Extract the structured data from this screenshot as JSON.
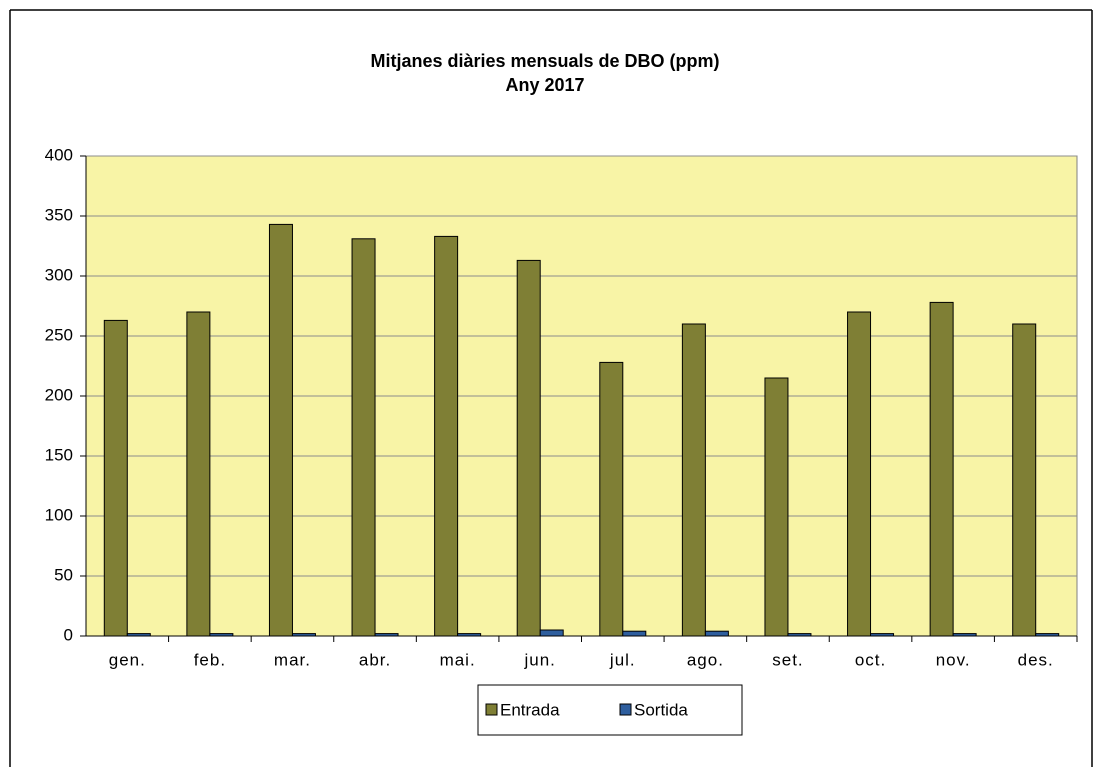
{
  "chart_data": {
    "type": "bar",
    "title": "Mitjanes diàries mensuals  de DBO (ppm)",
    "subtitle": "Any 2017",
    "categories": [
      "gen.",
      "feb.",
      "mar.",
      "abr.",
      "mai.",
      "jun.",
      "jul.",
      "ago.",
      "set.",
      "oct.",
      "nov.",
      "des."
    ],
    "series": [
      {
        "name": "Entrada",
        "color": "#7f7f35",
        "values": [
          263,
          270,
          343,
          331,
          333,
          313,
          228,
          260,
          215,
          270,
          278,
          260
        ]
      },
      {
        "name": "Sortida",
        "color": "#2e5e9e",
        "values": [
          2,
          2,
          2,
          2,
          2,
          5,
          4,
          4,
          2,
          2,
          2,
          2
        ]
      }
    ],
    "ylim": [
      0,
      400
    ],
    "yticks": [
      0,
      50,
      100,
      150,
      200,
      250,
      300,
      350,
      400
    ],
    "grid": true,
    "legend": "bottom"
  }
}
